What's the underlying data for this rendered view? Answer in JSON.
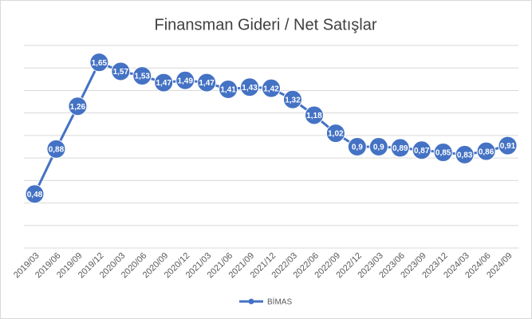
{
  "chart_data": {
    "type": "line",
    "title": "Finansman Gideri / Net Satışlar",
    "categories": [
      "2019/03",
      "2019/06",
      "2019/09",
      "2019/12",
      "2020/03",
      "2020/06",
      "2020/09",
      "2020/12",
      "2021/03",
      "2021/06",
      "2021/09",
      "2021/12",
      "2022/03",
      "2022/06",
      "2022/09",
      "2022/12",
      "2023/03",
      "2023/06",
      "2023/09",
      "2023/12",
      "2024/03",
      "2024/06",
      "2024/09"
    ],
    "series": [
      {
        "name": "BİMAS",
        "color": "#4472c4",
        "values": [
          0.48,
          0.88,
          1.26,
          1.65,
          1.57,
          1.53,
          1.47,
          1.49,
          1.47,
          1.41,
          1.43,
          1.42,
          1.32,
          1.18,
          1.02,
          0.9,
          0.9,
          0.89,
          0.87,
          0.85,
          0.83,
          0.86,
          0.91
        ],
        "value_labels": [
          "0,48",
          "0,88",
          "1,26",
          "1,65",
          "1,57",
          "1,53",
          "1,47",
          "1,49",
          "1,47",
          "1,41",
          "1,43",
          "1,42",
          "1,32",
          "1,18",
          "1,02",
          "0,9",
          "0,9",
          "0,89",
          "0,87",
          "0,85",
          "0,83",
          "0,86",
          "0,91"
        ]
      }
    ],
    "ylim": [
      0,
      1.8
    ],
    "yticks": [
      0,
      0.2,
      0.4,
      0.6,
      0.8,
      1,
      1.2,
      1.4,
      1.6,
      1.8
    ],
    "grid": true,
    "legend": "bottom"
  }
}
